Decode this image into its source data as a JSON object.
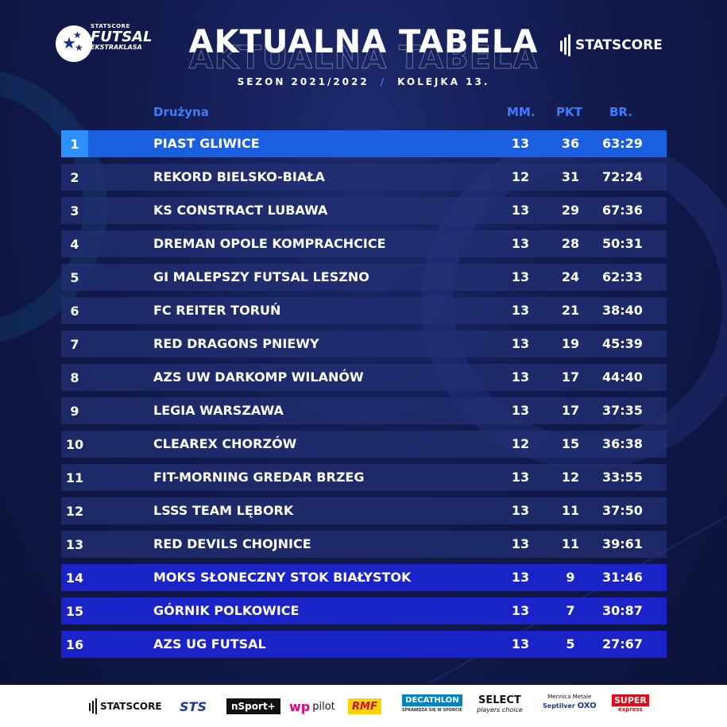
{
  "header": {
    "logo_small": "STATSCORE",
    "logo_big": "FUTSAL",
    "logo_sub": "EKSTRAKLASA",
    "title": "AKTUALNA TABELA",
    "season": "SEZON 2021/2022",
    "separator": "/",
    "round": "KOLEJKA 13.",
    "brand": "STATSCORE"
  },
  "table": {
    "columns": {
      "team": "Drużyna",
      "mm": "MM.",
      "pkt": "PKT",
      "br": "BR."
    },
    "rows": [
      {
        "pos": "1",
        "team": "PIAST GLIWICE",
        "mm": "13",
        "pkt": "36",
        "br": "63:29"
      },
      {
        "pos": "2",
        "team": "REKORD BIELSKO-BIAŁA",
        "mm": "12",
        "pkt": "31",
        "br": "72:24"
      },
      {
        "pos": "3",
        "team": "KS CONSTRACT LUBAWA",
        "mm": "13",
        "pkt": "29",
        "br": "67:36"
      },
      {
        "pos": "4",
        "team": "DREMAN OPOLE KOMPRACHCICE",
        "mm": "13",
        "pkt": "28",
        "br": "50:31"
      },
      {
        "pos": "5",
        "team": "GI MALEPSZY FUTSAL LESZNO",
        "mm": "13",
        "pkt": "24",
        "br": "62:33"
      },
      {
        "pos": "6",
        "team": "FC REITER TORUŃ",
        "mm": "13",
        "pkt": "21",
        "br": "38:40"
      },
      {
        "pos": "7",
        "team": "RED DRAGONS PNIEWY",
        "mm": "13",
        "pkt": "19",
        "br": "45:39"
      },
      {
        "pos": "8",
        "team": "AZS UW DARKOMP WILANÓW",
        "mm": "13",
        "pkt": "17",
        "br": "44:40"
      },
      {
        "pos": "9",
        "team": "LEGIA WARSZAWA",
        "mm": "13",
        "pkt": "17",
        "br": "37:35"
      },
      {
        "pos": "10",
        "team": "CLEAREX CHORZÓW",
        "mm": "12",
        "pkt": "15",
        "br": "36:38"
      },
      {
        "pos": "11",
        "team": "FIT-MORNING GREDAR BRZEG",
        "mm": "13",
        "pkt": "12",
        "br": "33:55"
      },
      {
        "pos": "12",
        "team": "LSSS TEAM LĘBORK",
        "mm": "13",
        "pkt": "11",
        "br": "37:50"
      },
      {
        "pos": "13",
        "team": "RED DEVILS CHOJNICE",
        "mm": "13",
        "pkt": "11",
        "br": "39:61"
      },
      {
        "pos": "14",
        "team": "MOKS SŁONECZNY STOK BIAŁYSTOK",
        "mm": "13",
        "pkt": "9",
        "br": "31:46"
      },
      {
        "pos": "15",
        "team": "GÓRNIK POLKOWICE",
        "mm": "13",
        "pkt": "7",
        "br": "30:87"
      },
      {
        "pos": "16",
        "team": "AZS UG FUTSAL",
        "mm": "13",
        "pkt": "5",
        "br": "27:67"
      }
    ]
  },
  "sponsors": {
    "statscore": "STATSCORE",
    "sts": "STS",
    "nsport": "nSport+",
    "wp_mark": "wp",
    "wp_pilot": "pilot",
    "rmf": "RMF",
    "decathlon": "DECATHLON",
    "decathlon_tag": "SPRAWDZA SIĘ W SPORCIE",
    "select": "SELECT",
    "select_tag": "players choice",
    "mennica": "Mennica Metale",
    "septilver": "Septilver",
    "oxo": "OXO",
    "super": "SUPER",
    "super_tag": "express"
  },
  "colors": {
    "background": "#121a4d",
    "row": "#223175",
    "leader": "#1a5fe0",
    "relegation": "#1a23c8",
    "accent": "#3d7dff"
  }
}
